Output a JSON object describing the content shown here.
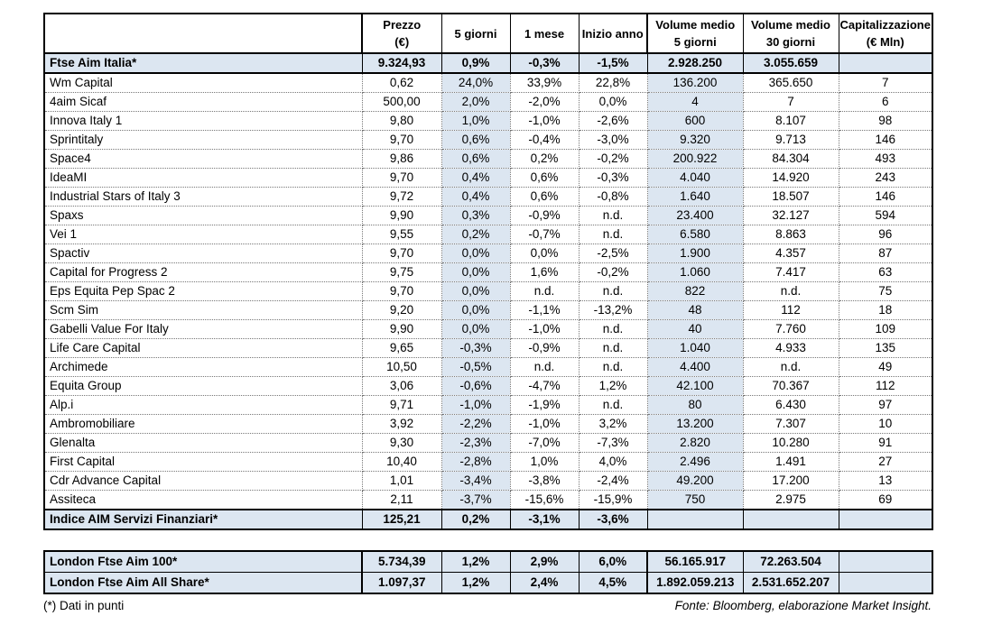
{
  "colors": {
    "highlight": "#dce6f1",
    "border": "#000000"
  },
  "main_table": {
    "headers": [
      {
        "lines": [
          "Prezzo",
          "(€)"
        ]
      },
      {
        "lines": [
          "5 giorni"
        ]
      },
      {
        "lines": [
          "1 mese"
        ]
      },
      {
        "lines": [
          "Inizio anno"
        ]
      },
      {
        "lines": [
          "Volume medio",
          "5 giorni"
        ]
      },
      {
        "lines": [
          "Volume medio",
          "30 giorni"
        ]
      },
      {
        "lines": [
          "Capitalizzazione",
          "(€ Mln)"
        ]
      }
    ],
    "rows": [
      {
        "type": "index",
        "name": "Ftse Aim Italia*",
        "values": [
          "9.324,93",
          "0,9%",
          "-0,3%",
          "-1,5%",
          "2.928.250",
          "3.055.659",
          ""
        ]
      },
      {
        "type": "stock",
        "name": "Wm Capital",
        "values": [
          "0,62",
          "24,0%",
          "33,9%",
          "22,8%",
          "136.200",
          "365.650",
          "7"
        ]
      },
      {
        "type": "stock",
        "name": "4aim Sicaf",
        "values": [
          "500,00",
          "2,0%",
          "-2,0%",
          "0,0%",
          "4",
          "7",
          "6"
        ]
      },
      {
        "type": "stock",
        "name": "Innova Italy 1",
        "values": [
          "9,80",
          "1,0%",
          "-1,0%",
          "-2,6%",
          "600",
          "8.107",
          "98"
        ]
      },
      {
        "type": "stock",
        "name": "Sprintitaly",
        "values": [
          "9,70",
          "0,6%",
          "-0,4%",
          "-3,0%",
          "9.320",
          "9.713",
          "146"
        ]
      },
      {
        "type": "stock",
        "name": "Space4",
        "values": [
          "9,86",
          "0,6%",
          "0,2%",
          "-0,2%",
          "200.922",
          "84.304",
          "493"
        ]
      },
      {
        "type": "stock",
        "name": "IdeaMI",
        "values": [
          "9,70",
          "0,4%",
          "0,6%",
          "-0,3%",
          "4.040",
          "14.920",
          "243"
        ]
      },
      {
        "type": "stock",
        "name": "Industrial Stars of Italy 3",
        "values": [
          "9,72",
          "0,4%",
          "0,6%",
          "-0,8%",
          "1.640",
          "18.507",
          "146"
        ]
      },
      {
        "type": "stock",
        "name": "Spaxs",
        "values": [
          "9,90",
          "0,3%",
          "-0,9%",
          "n.d.",
          "23.400",
          "32.127",
          "594"
        ]
      },
      {
        "type": "stock",
        "name": "Vei 1",
        "values": [
          "9,55",
          "0,2%",
          "-0,7%",
          "n.d.",
          "6.580",
          "8.863",
          "96"
        ]
      },
      {
        "type": "stock",
        "name": "Spactiv",
        "values": [
          "9,70",
          "0,0%",
          "0,0%",
          "-2,5%",
          "1.900",
          "4.357",
          "87"
        ]
      },
      {
        "type": "stock",
        "name": "Capital for Progress 2",
        "values": [
          "9,75",
          "0,0%",
          "1,6%",
          "-0,2%",
          "1.060",
          "7.417",
          "63"
        ]
      },
      {
        "type": "stock",
        "name": "Eps Equita Pep Spac 2",
        "values": [
          "9,70",
          "0,0%",
          "n.d.",
          "n.d.",
          "822",
          "n.d.",
          "75"
        ]
      },
      {
        "type": "stock",
        "name": "Scm Sim",
        "values": [
          "9,20",
          "0,0%",
          "-1,1%",
          "-13,2%",
          "48",
          "112",
          "18"
        ]
      },
      {
        "type": "stock",
        "name": "Gabelli Value For Italy",
        "values": [
          "9,90",
          "0,0%",
          "-1,0%",
          "n.d.",
          "40",
          "7.760",
          "109"
        ]
      },
      {
        "type": "stock",
        "name": "Life Care Capital",
        "values": [
          "9,65",
          "-0,3%",
          "-0,9%",
          "n.d.",
          "1.040",
          "4.933",
          "135"
        ]
      },
      {
        "type": "stock",
        "name": "Archimede",
        "values": [
          "10,50",
          "-0,5%",
          "n.d.",
          "n.d.",
          "4.400",
          "n.d.",
          "49"
        ]
      },
      {
        "type": "stock",
        "name": "Equita Group",
        "values": [
          "3,06",
          "-0,6%",
          "-4,7%",
          "1,2%",
          "42.100",
          "70.367",
          "112"
        ]
      },
      {
        "type": "stock",
        "name": "Alp.i",
        "values": [
          "9,71",
          "-1,0%",
          "-1,9%",
          "n.d.",
          "80",
          "6.430",
          "97"
        ]
      },
      {
        "type": "stock",
        "name": "Ambromobiliare",
        "values": [
          "3,92",
          "-2,2%",
          "-1,0%",
          "3,2%",
          "13.200",
          "7.307",
          "10"
        ]
      },
      {
        "type": "stock",
        "name": "Glenalta",
        "values": [
          "9,30",
          "-2,3%",
          "-7,0%",
          "-7,3%",
          "2.820",
          "10.280",
          "91"
        ]
      },
      {
        "type": "stock",
        "name": "First Capital",
        "values": [
          "10,40",
          "-2,8%",
          "1,0%",
          "4,0%",
          "2.496",
          "1.491",
          "27"
        ]
      },
      {
        "type": "stock",
        "name": "Cdr Advance Capital",
        "values": [
          "1,01",
          "-3,4%",
          "-3,8%",
          "-2,4%",
          "49.200",
          "17.200",
          "13"
        ]
      },
      {
        "type": "stock",
        "name": "Assiteca",
        "values": [
          "2,11",
          "-3,7%",
          "-15,6%",
          "-15,9%",
          "750",
          "2.975",
          "69"
        ]
      },
      {
        "type": "index",
        "name": "Indice AIM Servizi Finanziari*",
        "values": [
          "125,21",
          "0,2%",
          "-3,1%",
          "-3,6%",
          "",
          "",
          ""
        ]
      }
    ]
  },
  "london_table": {
    "rows": [
      {
        "name": "London Ftse Aim 100*",
        "values": [
          "5.734,39",
          "1,2%",
          "2,9%",
          "6,0%",
          "56.165.917",
          "72.263.504",
          ""
        ]
      },
      {
        "name": "London Ftse Aim All Share*",
        "values": [
          "1.097,37",
          "1,2%",
          "2,4%",
          "4,5%",
          "1.892.059.213",
          "2.531.652.207",
          ""
        ]
      }
    ]
  },
  "footer": {
    "note": "(*) Dati in punti",
    "source": "Fonte: Bloomberg, elaborazione Market Insight."
  }
}
